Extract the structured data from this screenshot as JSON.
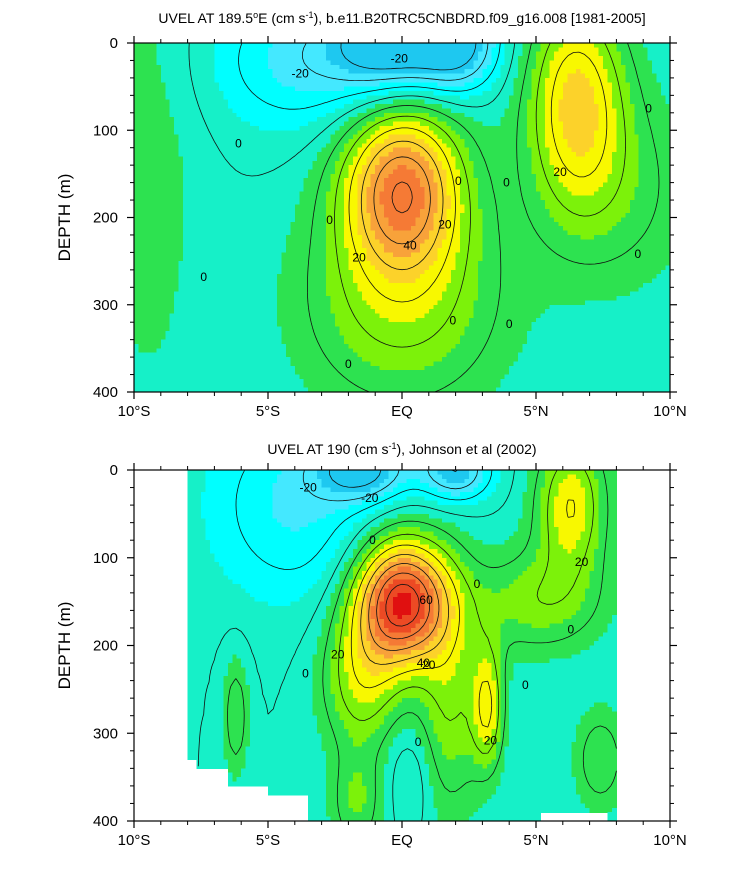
{
  "chart_data": [
    {
      "type": "contour",
      "title_prefix": "UVEL AT 189.5",
      "title_degree": "o",
      "title_mid": "E (cm s",
      "title_exp": "-1",
      "title_suffix": "), b.e11.B20TRC5CNBDRD.f09_g16.008 [1981-2005]",
      "ylabel": "DEPTH (m)",
      "x_ticks": [
        "10°S",
        "5°S",
        "EQ",
        "5°N",
        "10°N"
      ],
      "x_tick_values": [
        -10,
        -5,
        0,
        5,
        10
      ],
      "y_ticks": [
        "0",
        "100",
        "200",
        "300",
        "400"
      ],
      "y_tick_values": [
        0,
        100,
        200,
        300,
        400
      ],
      "xlim": [
        -10,
        10
      ],
      "ylim": [
        0,
        400
      ],
      "contour_interval": 10,
      "data_extent": [
        -10,
        10
      ],
      "features": [
        {
          "name": "equatorial-undercurrent",
          "center_lat": 0,
          "center_depth": 165,
          "peak": 55
        },
        {
          "name": "necc",
          "center_lat": 6.5,
          "center_depth": 65,
          "peak": 35
        },
        {
          "name": "south-westward-flow",
          "center_lat": -0.5,
          "center_depth": 10,
          "peak": -35
        },
        {
          "name": "north-westward-flow",
          "center_lat": 2.0,
          "center_depth": 10,
          "peak": -35
        }
      ],
      "contour_labels": [
        {
          "text": "-20",
          "lat": -3.8,
          "depth": 35
        },
        {
          "text": "-20",
          "lat": -0.1,
          "depth": 18
        },
        {
          "text": "0",
          "lat": -6.1,
          "depth": 115
        },
        {
          "text": "0",
          "lat": -7.4,
          "depth": 268
        },
        {
          "text": "0",
          "lat": -2.7,
          "depth": 203
        },
        {
          "text": "0",
          "lat": 2.1,
          "depth": 158
        },
        {
          "text": "0",
          "lat": 3.9,
          "depth": 160
        },
        {
          "text": "0",
          "lat": 1.9,
          "depth": 318
        },
        {
          "text": "0",
          "lat": 4.0,
          "depth": 322
        },
        {
          "text": "0",
          "lat": -2.0,
          "depth": 368
        },
        {
          "text": "0",
          "lat": 9.2,
          "depth": 75
        },
        {
          "text": "0",
          "lat": 8.8,
          "depth": 242
        },
        {
          "text": "20",
          "lat": 1.6,
          "depth": 208
        },
        {
          "text": "20",
          "lat": -1.6,
          "depth": 246
        },
        {
          "text": "40",
          "lat": 0.3,
          "depth": 232
        },
        {
          "text": "20",
          "lat": 5.9,
          "depth": 148
        }
      ]
    },
    {
      "type": "contour",
      "title_prefix": "UVEL AT 190 (cm s",
      "title_exp": "-1",
      "title_suffix": "), Johnson et al (2002)",
      "ylabel": "DEPTH (m)",
      "x_ticks": [
        "10°S",
        "5°S",
        "EQ",
        "5°N",
        "10°N"
      ],
      "x_tick_values": [
        -10,
        -5,
        0,
        5,
        10
      ],
      "y_ticks": [
        "0",
        "100",
        "200",
        "300",
        "400"
      ],
      "y_tick_values": [
        0,
        100,
        200,
        300,
        400
      ],
      "xlim": [
        -10,
        10
      ],
      "ylim": [
        0,
        400
      ],
      "contour_interval": 10,
      "data_extent": [
        -8,
        8
      ],
      "features": [
        {
          "name": "equatorial-undercurrent",
          "center_lat": 0,
          "center_depth": 150,
          "peak": 75
        },
        {
          "name": "necc",
          "center_lat": 6.3,
          "center_depth": 40,
          "peak": 30
        },
        {
          "name": "south-westward-flow",
          "center_lat": -1.5,
          "center_depth": 8,
          "peak": -30
        },
        {
          "name": "north-westward-flow",
          "center_lat": 2.0,
          "center_depth": 8,
          "peak": -30
        }
      ],
      "contour_labels": [
        {
          "text": "-20",
          "lat": -3.5,
          "depth": 20
        },
        {
          "text": "-20",
          "lat": -1.2,
          "depth": 32
        },
        {
          "text": "0",
          "lat": -1.1,
          "depth": 80
        },
        {
          "text": "0",
          "lat": 2.8,
          "depth": 130
        },
        {
          "text": "0",
          "lat": 6.3,
          "depth": 182
        },
        {
          "text": "0",
          "lat": 4.6,
          "depth": 245
        },
        {
          "text": "0",
          "lat": -3.6,
          "depth": 232
        },
        {
          "text": "0",
          "lat": 0.6,
          "depth": 310
        },
        {
          "text": "60",
          "lat": 0.9,
          "depth": 148
        },
        {
          "text": "40",
          "lat": 0.8,
          "depth": 220
        },
        {
          "text": "20",
          "lat": -2.4,
          "depth": 210
        },
        {
          "text": "20",
          "lat": 1.0,
          "depth": 222
        },
        {
          "text": "20",
          "lat": 3.3,
          "depth": 308
        },
        {
          "text": "20",
          "lat": 6.7,
          "depth": 105
        }
      ]
    }
  ],
  "colors": {
    "neg30": "#1ec8f0",
    "neg20": "#44e8ff",
    "neg10": "#00ffff",
    "zero": "#16f0c8",
    "pos10": "#2de250",
    "pos20": "#7cf20a",
    "pos30": "#f8f800",
    "pos40": "#fcd22a",
    "pos50": "#f8a23a",
    "pos60": "#f57a35",
    "pos70": "#ec4a24",
    "pos80": "#e01010"
  }
}
